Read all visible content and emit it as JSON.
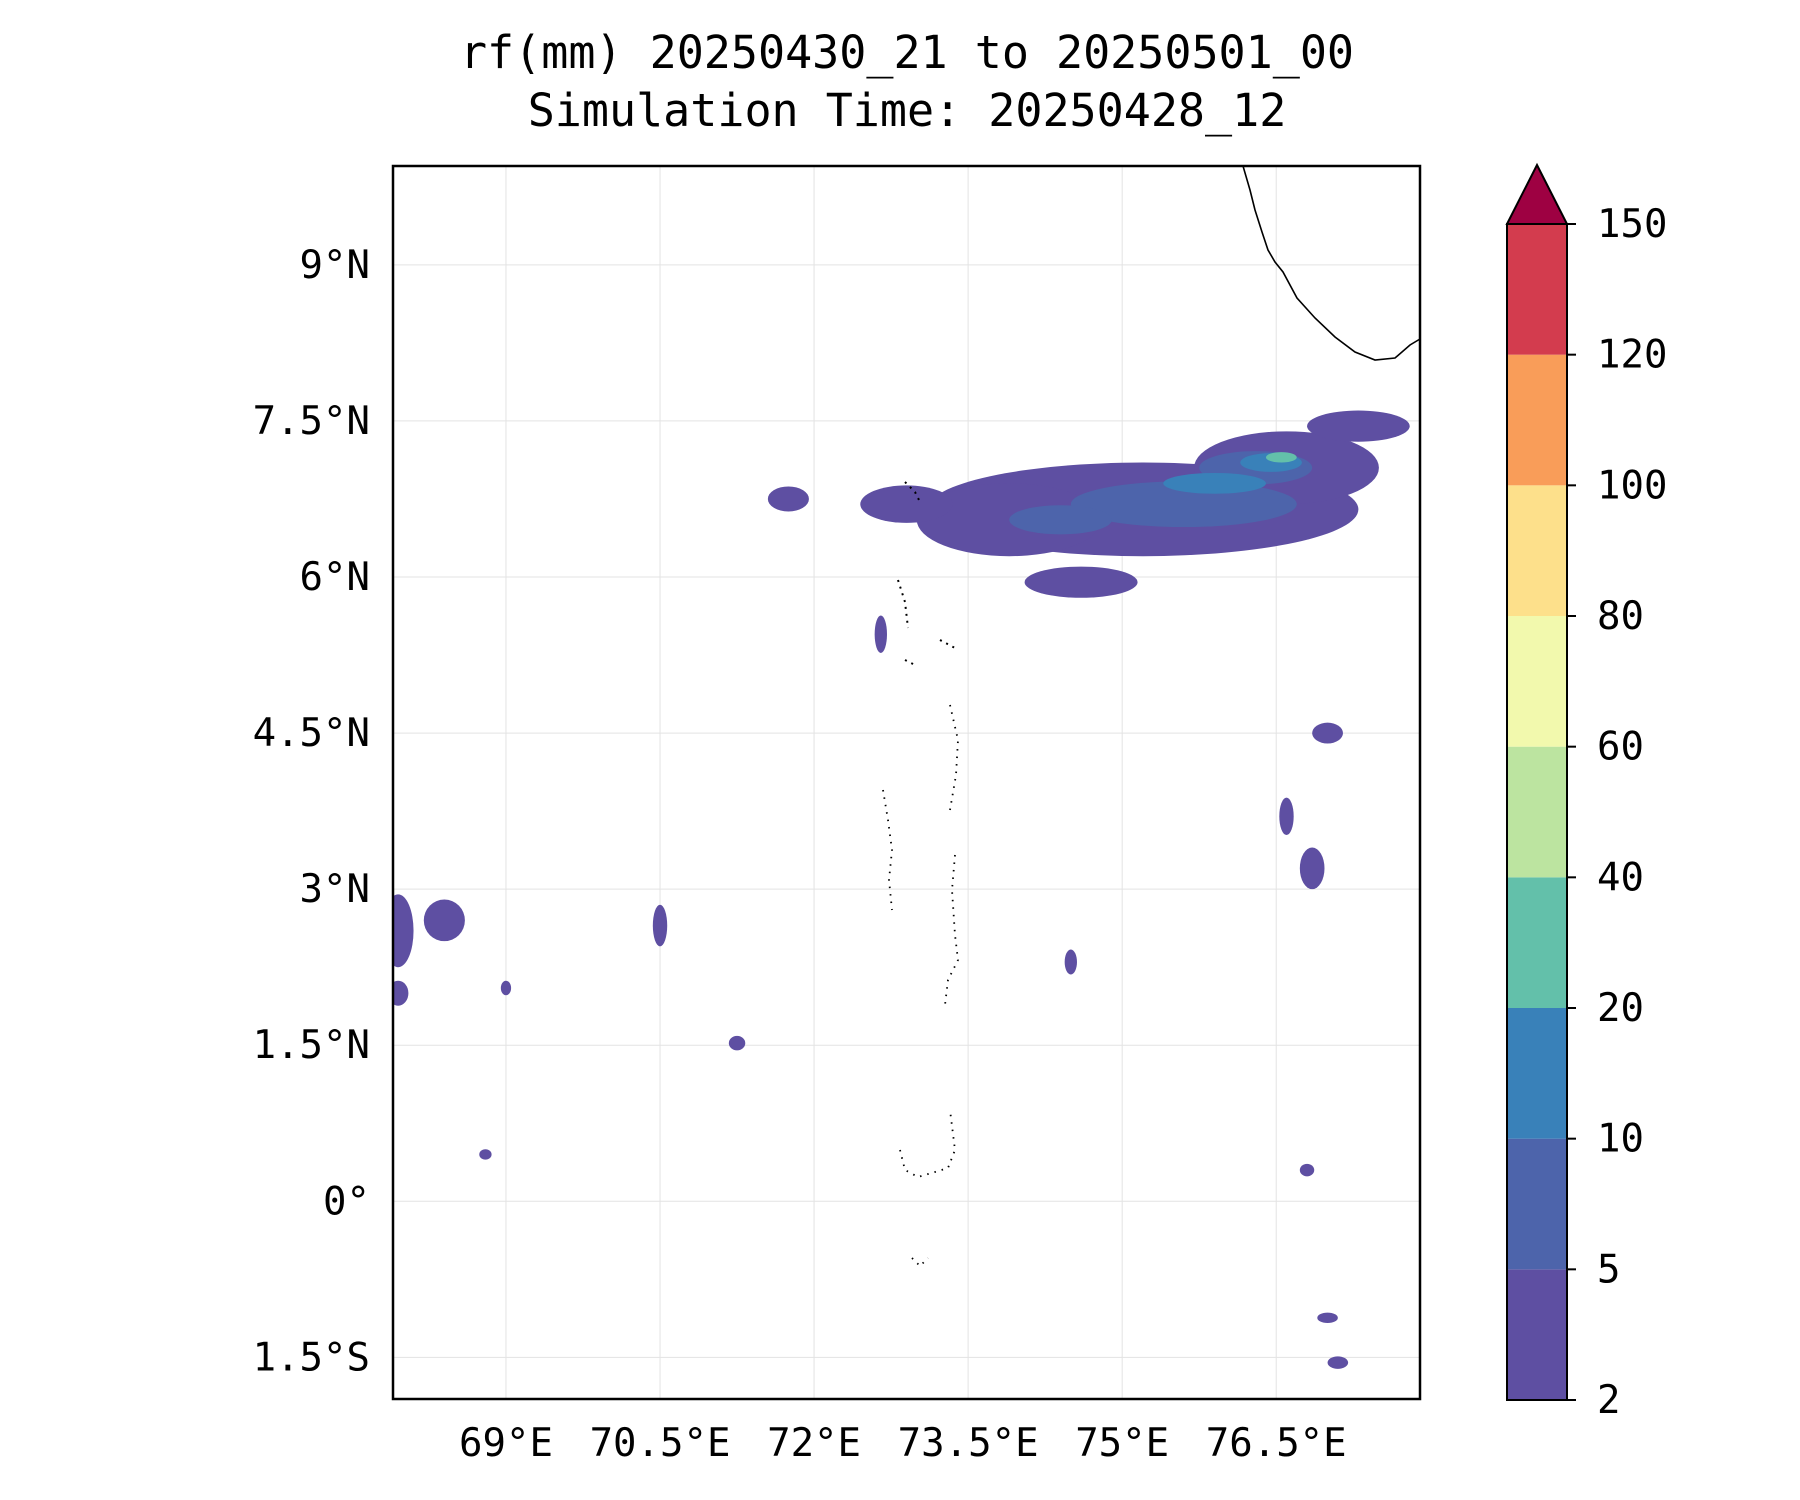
{
  "title": {
    "line1": "rf(mm) 20250430_21 to 20250501_00",
    "line2": "Simulation Time: 20250428_12"
  },
  "map": {
    "lon_range": [
      67.9,
      77.9
    ],
    "lat_range": [
      -1.9,
      9.95
    ],
    "x_ticks": [
      {
        "value": 69.0,
        "label": "69°E"
      },
      {
        "value": 70.5,
        "label": "70.5°E"
      },
      {
        "value": 72.0,
        "label": "72°E"
      },
      {
        "value": 73.5,
        "label": "73.5°E"
      },
      {
        "value": 75.0,
        "label": "75°E"
      },
      {
        "value": 76.5,
        "label": "76.5°E"
      }
    ],
    "y_ticks": [
      {
        "value": 9.0,
        "label": "9°N"
      },
      {
        "value": 7.5,
        "label": "7.5°N"
      },
      {
        "value": 6.0,
        "label": "6°N"
      },
      {
        "value": 4.5,
        "label": "4.5°N"
      },
      {
        "value": 3.0,
        "label": "3°N"
      },
      {
        "value": 1.5,
        "label": "1.5°N"
      },
      {
        "value": 0.0,
        "label": "0°"
      },
      {
        "value": -1.5,
        "label": "1.5°S"
      }
    ],
    "gridlines": true,
    "coastline_color": "#000000",
    "rain_blobs": [
      {
        "lon": 75.2,
        "lat": 6.65,
        "rx": 2.1,
        "ry": 0.45,
        "level": 0
      },
      {
        "lon": 73.9,
        "lat": 6.55,
        "rx": 0.9,
        "ry": 0.35,
        "level": 0
      },
      {
        "lon": 76.6,
        "lat": 7.05,
        "rx": 0.9,
        "ry": 0.35,
        "level": 0
      },
      {
        "lon": 77.3,
        "lat": 7.45,
        "rx": 0.5,
        "ry": 0.15,
        "level": 0
      },
      {
        "lon": 74.6,
        "lat": 5.95,
        "rx": 0.55,
        "ry": 0.15,
        "level": 0
      },
      {
        "lon": 72.9,
        "lat": 6.7,
        "rx": 0.45,
        "ry": 0.18,
        "level": 0
      },
      {
        "lon": 75.6,
        "lat": 6.7,
        "rx": 1.1,
        "ry": 0.22,
        "level": 1
      },
      {
        "lon": 74.4,
        "lat": 6.55,
        "rx": 0.5,
        "ry": 0.14,
        "level": 1
      },
      {
        "lon": 76.3,
        "lat": 7.05,
        "rx": 0.55,
        "ry": 0.16,
        "level": 1
      },
      {
        "lon": 75.9,
        "lat": 6.9,
        "rx": 0.5,
        "ry": 0.1,
        "level": 2
      },
      {
        "lon": 76.45,
        "lat": 7.1,
        "rx": 0.3,
        "ry": 0.09,
        "level": 2
      },
      {
        "lon": 76.55,
        "lat": 7.15,
        "rx": 0.15,
        "ry": 0.05,
        "level": 3
      },
      {
        "lon": 67.95,
        "lat": 2.6,
        "rx": 0.15,
        "ry": 0.35,
        "level": 0
      },
      {
        "lon": 68.4,
        "lat": 2.7,
        "rx": 0.2,
        "ry": 0.2,
        "level": 0
      },
      {
        "lon": 67.95,
        "lat": 2.0,
        "rx": 0.1,
        "ry": 0.12,
        "level": 0
      },
      {
        "lon": 70.5,
        "lat": 2.65,
        "rx": 0.07,
        "ry": 0.2,
        "level": 0
      },
      {
        "lon": 71.25,
        "lat": 1.52,
        "rx": 0.08,
        "ry": 0.07,
        "level": 0
      },
      {
        "lon": 72.65,
        "lat": 5.45,
        "rx": 0.06,
        "ry": 0.18,
        "level": 0
      },
      {
        "lon": 71.75,
        "lat": 6.75,
        "rx": 0.2,
        "ry": 0.12,
        "level": 0
      },
      {
        "lon": 77.0,
        "lat": 4.5,
        "rx": 0.15,
        "ry": 0.1,
        "level": 0
      },
      {
        "lon": 76.6,
        "lat": 3.7,
        "rx": 0.07,
        "ry": 0.18,
        "level": 0
      },
      {
        "lon": 76.85,
        "lat": 3.2,
        "rx": 0.12,
        "ry": 0.2,
        "level": 0
      },
      {
        "lon": 77.0,
        "lat": -1.12,
        "rx": 0.1,
        "ry": 0.05,
        "level": 0
      },
      {
        "lon": 77.1,
        "lat": -1.55,
        "rx": 0.1,
        "ry": 0.06,
        "level": 0
      },
      {
        "lon": 76.8,
        "lat": 0.3,
        "rx": 0.07,
        "ry": 0.06,
        "level": 0
      },
      {
        "lon": 74.5,
        "lat": 2.3,
        "rx": 0.06,
        "ry": 0.12,
        "level": 0
      },
      {
        "lon": 69.0,
        "lat": 2.05,
        "rx": 0.05,
        "ry": 0.07,
        "level": 0
      },
      {
        "lon": 68.8,
        "lat": 0.45,
        "rx": 0.06,
        "ry": 0.05,
        "level": 0
      }
    ]
  },
  "colorbar": {
    "colors": [
      "#5e4fa2",
      "#4d64ab",
      "#3981b9",
      "#63c0aa",
      "#bce4a0",
      "#f2f9ad",
      "#fde08b",
      "#f99d59",
      "#d33c4e"
    ],
    "extend_color": "#9e0142",
    "tick_labels": [
      "2",
      "5",
      "10",
      "20",
      "40",
      "60",
      "80",
      "100",
      "120",
      "150"
    ]
  }
}
